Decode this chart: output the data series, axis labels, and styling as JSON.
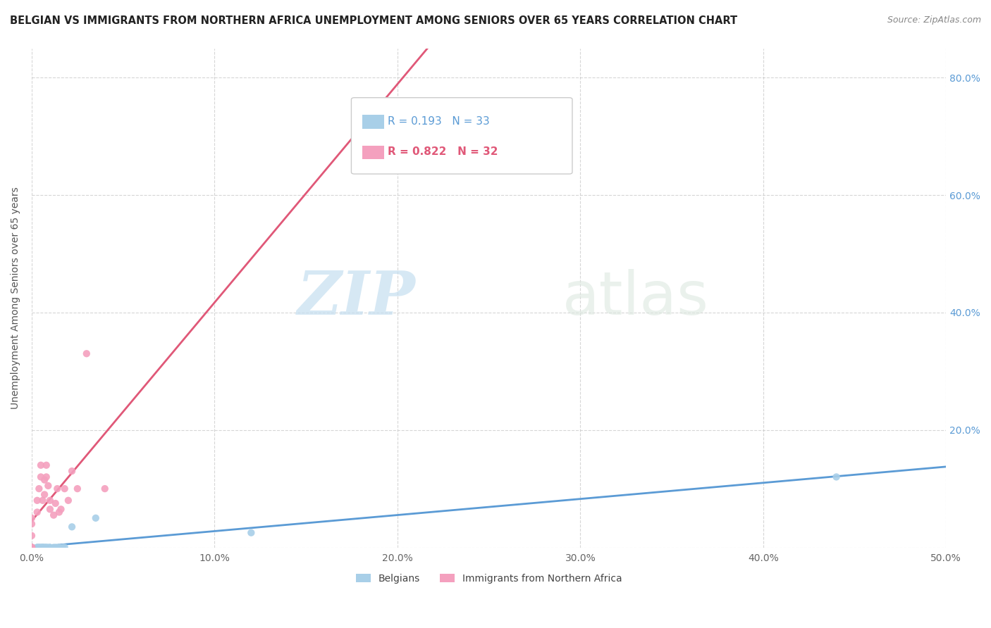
{
  "title": "BELGIAN VS IMMIGRANTS FROM NORTHERN AFRICA UNEMPLOYMENT AMONG SENIORS OVER 65 YEARS CORRELATION CHART",
  "source": "Source: ZipAtlas.com",
  "ylabel": "Unemployment Among Seniors over 65 years",
  "xlim": [
    0.0,
    0.5
  ],
  "ylim": [
    0.0,
    0.85
  ],
  "xticks": [
    0.0,
    0.1,
    0.2,
    0.3,
    0.4,
    0.5
  ],
  "yticks": [
    0.0,
    0.2,
    0.4,
    0.6,
    0.8
  ],
  "xticklabels": [
    "0.0%",
    "10.0%",
    "20.0%",
    "30.0%",
    "40.0%",
    "50.0%"
  ],
  "yticklabels_right": [
    "",
    "20.0%",
    "40.0%",
    "60.0%",
    "80.0%"
  ],
  "belgians_r": 0.193,
  "belgians_n": 33,
  "immigrants_r": 0.822,
  "immigrants_n": 32,
  "belgians_color": "#a8cfe8",
  "immigrants_color": "#f4a0be",
  "belgians_line_color": "#5b9bd5",
  "immigrants_line_color": "#e05878",
  "watermark_zip": "ZIP",
  "watermark_atlas": "atlas",
  "belgians_x": [
    0.0,
    0.0,
    0.0,
    0.0,
    0.0,
    0.0,
    0.0,
    0.003,
    0.003,
    0.004,
    0.004,
    0.005,
    0.005,
    0.006,
    0.006,
    0.006,
    0.007,
    0.007,
    0.008,
    0.008,
    0.009,
    0.01,
    0.01,
    0.012,
    0.013,
    0.015,
    0.015,
    0.017,
    0.018,
    0.022,
    0.035,
    0.12,
    0.44
  ],
  "belgians_y": [
    0.0,
    0.0,
    0.0,
    0.0,
    0.0,
    0.0,
    0.0,
    0.0,
    0.0,
    0.0,
    0.0,
    0.0,
    0.0,
    0.0,
    0.0,
    0.0,
    0.0,
    0.0,
    0.0,
    0.0,
    0.0,
    0.0,
    0.0,
    0.0,
    0.0,
    0.0,
    0.0,
    0.0,
    0.0,
    0.035,
    0.05,
    0.025,
    0.12
  ],
  "immigrants_x": [
    0.0,
    0.0,
    0.0,
    0.0,
    0.0,
    0.0,
    0.0,
    0.0,
    0.003,
    0.003,
    0.004,
    0.005,
    0.005,
    0.006,
    0.007,
    0.007,
    0.008,
    0.008,
    0.009,
    0.01,
    0.01,
    0.012,
    0.013,
    0.014,
    0.015,
    0.016,
    0.018,
    0.02,
    0.022,
    0.025,
    0.03,
    0.04
  ],
  "immigrants_y": [
    0.0,
    0.0,
    0.0,
    0.0,
    0.0,
    0.02,
    0.04,
    0.05,
    0.06,
    0.08,
    0.1,
    0.12,
    0.14,
    0.08,
    0.09,
    0.115,
    0.12,
    0.14,
    0.105,
    0.08,
    0.065,
    0.055,
    0.075,
    0.1,
    0.06,
    0.065,
    0.1,
    0.08,
    0.13,
    0.1,
    0.33,
    0.1
  ]
}
